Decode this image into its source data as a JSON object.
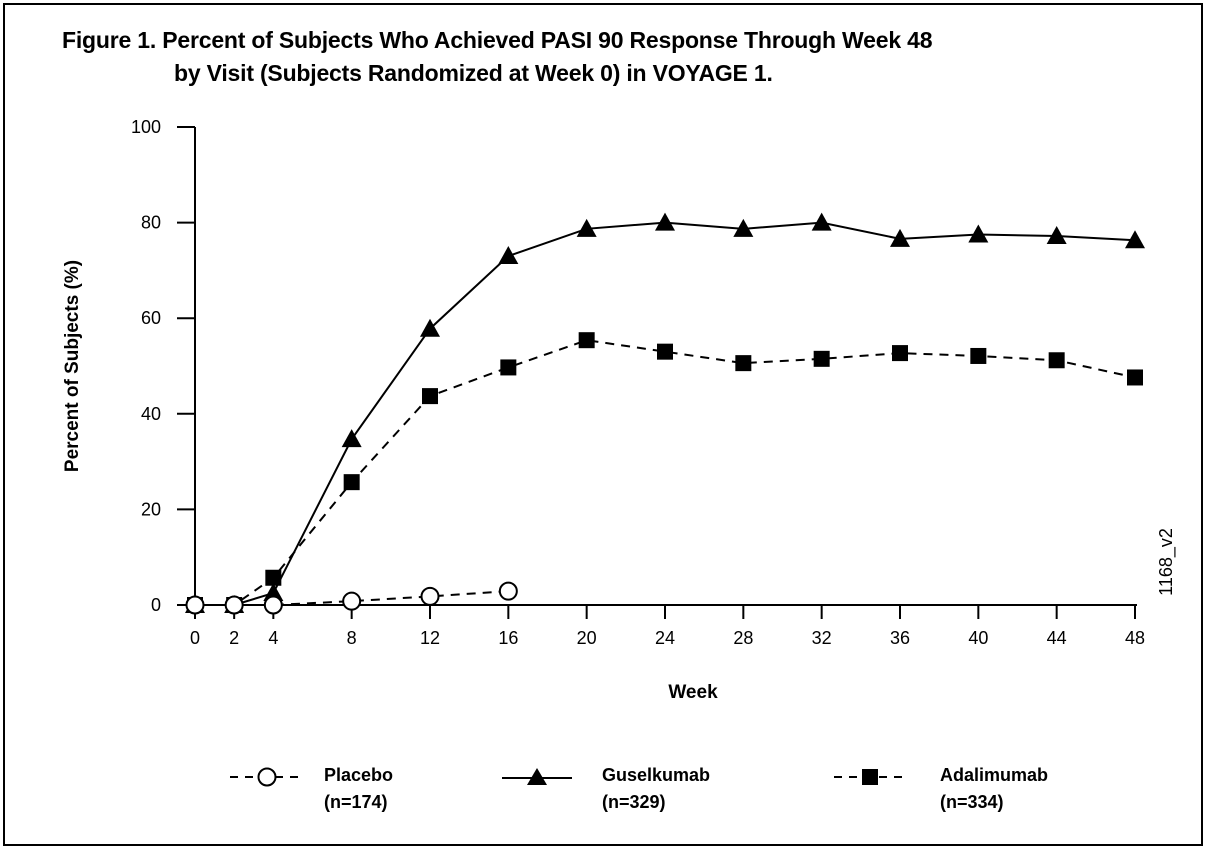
{
  "figure": {
    "title_line1": "Figure 1. Percent of Subjects Who Achieved PASI 90 Response Through Week 48",
    "title_line2": "by Visit (Subjects Randomized at Week 0) in VOYAGE 1.",
    "code": "1168_v2"
  },
  "chart_data": {
    "type": "line",
    "title": "Percent of Subjects Who Achieved PASI 90 Response Through Week 48 by Visit (Subjects Randomized at Week 0) in VOYAGE 1.",
    "xlabel": "Week",
    "ylabel": "Percent of Subjects (%)",
    "xlim": [
      0,
      48
    ],
    "ylim": [
      0,
      100
    ],
    "x_ticks": [
      0,
      2,
      4,
      8,
      12,
      16,
      20,
      24,
      28,
      32,
      36,
      40,
      44,
      48
    ],
    "y_ticks": [
      0,
      20,
      40,
      60,
      80,
      100
    ],
    "grid": false,
    "legend_position": "bottom",
    "series": [
      {
        "name": "Placebo",
        "n_label": "(n=174)",
        "marker": "open-circle",
        "line_style": "dashed",
        "x": [
          0,
          2,
          4,
          8,
          12,
          16
        ],
        "values": [
          0,
          0,
          0,
          0.8,
          1.8,
          2.9
        ]
      },
      {
        "name": "Guselkumab",
        "n_label": "(n=329)",
        "marker": "filled-triangle",
        "line_style": "solid",
        "x": [
          0,
          2,
          4,
          8,
          12,
          16,
          20,
          24,
          28,
          32,
          36,
          40,
          44,
          48
        ],
        "values": [
          0,
          0,
          2.5,
          34.7,
          57.8,
          73.0,
          78.7,
          80.0,
          78.7,
          80.0,
          76.6,
          77.5,
          77.2,
          76.3
        ]
      },
      {
        "name": "Adalimumab",
        "n_label": "(n=334)",
        "marker": "filled-square",
        "line_style": "dashed",
        "x": [
          0,
          2,
          4,
          8,
          12,
          16,
          20,
          24,
          28,
          32,
          36,
          40,
          44,
          48
        ],
        "values": [
          0,
          0,
          5.7,
          25.7,
          43.7,
          49.7,
          55.4,
          53.0,
          50.6,
          51.5,
          52.7,
          52.1,
          51.2,
          47.6
        ]
      }
    ]
  }
}
